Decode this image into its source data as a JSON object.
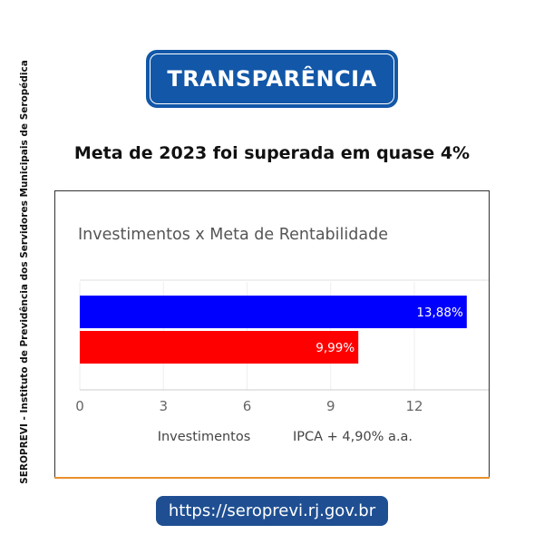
{
  "side_label": "SEROPREVI - Instituto de Previdência dos Servidores Municipais de Seropédica",
  "badge": {
    "label": "TRANSPARÊNCIA",
    "color": "#1257a8"
  },
  "headline": "Meta de 2023 foi superada em quase 4%",
  "url": "https://seroprevi.rj.gov.br",
  "chart_data": {
    "type": "bar",
    "orientation": "horizontal",
    "title": "Investimentos x Meta de Rentabilidade",
    "series": [
      {
        "name": "Investimentos",
        "value": 13.88,
        "label": "13,88%",
        "color": "#0000ff"
      },
      {
        "name": "IPCA + 4,90% a.a.",
        "value": 9.99,
        "label": "9,99%",
        "color": "#ff0000"
      }
    ],
    "xticks": [
      0,
      3,
      6,
      9,
      12
    ],
    "xlim": [
      0,
      14.9
    ],
    "legend": [
      "Investimentos",
      "IPCA + 4,90% a.a."
    ],
    "legend_position": "bottom"
  }
}
